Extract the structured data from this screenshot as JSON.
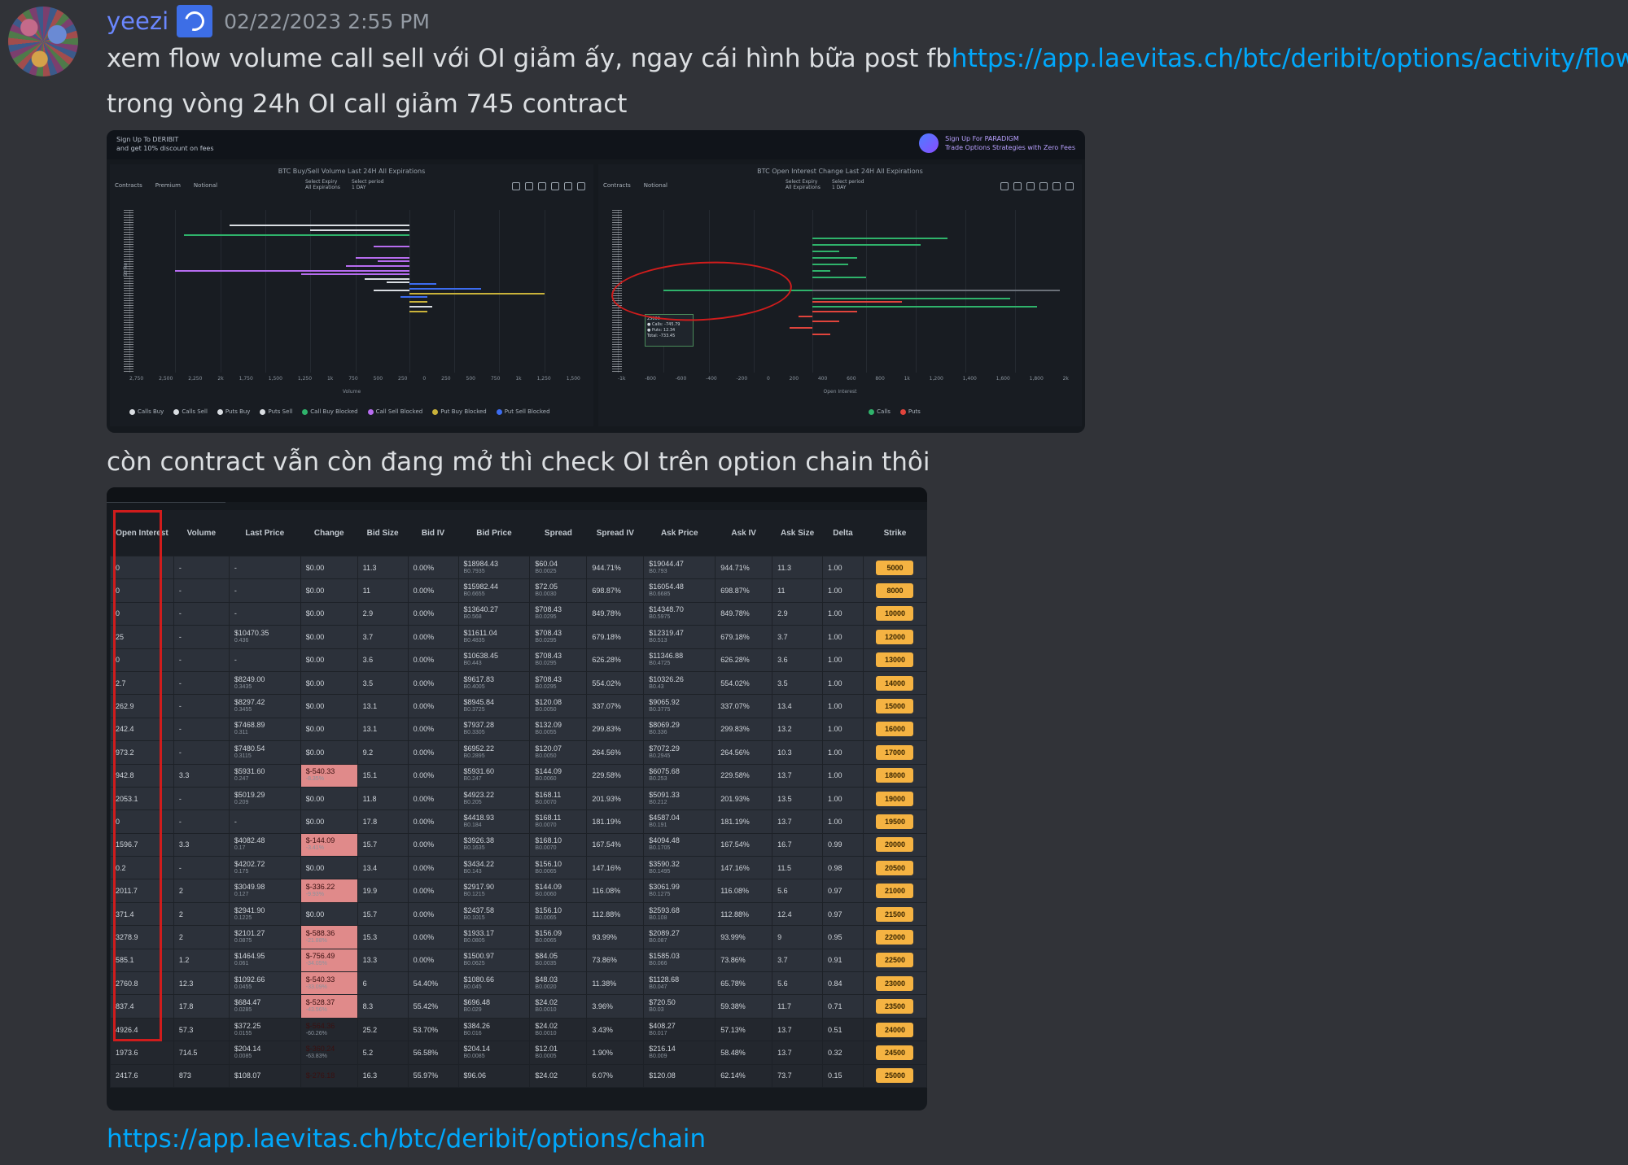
{
  "author": {
    "username": "yeezi",
    "timestamp": "02/22/2023 2:55 PM"
  },
  "message": {
    "line1_text": "xem flow volume call sell với OI giảm ấy, ngay cái hình bữa post fb",
    "line1_link": "https://app.laevitas.ch/btc/deribit/options/activity/flow",
    "line2_text": "trong vòng 24h OI call giảm 745 contract",
    "line3_text": "còn contract vẫn còn đang mở thì check OI trên option chain thôi",
    "final_link": "https://app.laevitas.ch/btc/deribit/options/chain"
  },
  "chart_image": {
    "promo_left_1": "Sign Up To DERIBIT",
    "promo_left_2": "and get 10% discount on fees",
    "promo_right_1": "Sign Up For PARADIGM",
    "promo_right_2": "Trade Options Strategies with Zero Fees",
    "left_panel": {
      "title": "BTC Buy/Sell Volume Last 24H All Expirations",
      "tabs": [
        "Contracts",
        "Premium",
        "Notional"
      ],
      "select1_label": "Select Expiry",
      "select1_value": "All Expirations",
      "select2_label": "Select period",
      "select2_value": "1 DAY",
      "y_label": "Strike",
      "x_label": "Volume",
      "x_ticks": [
        "2,750",
        "2,500",
        "2,250",
        "2k",
        "1,750",
        "1,500",
        "1,250",
        "1k",
        "750",
        "500",
        "250",
        "0",
        "250",
        "500",
        "750",
        "1k",
        "1,250",
        "1,500"
      ],
      "legend": [
        "Calls Buy",
        "Calls Sell",
        "Puts Buy",
        "Puts Sell",
        "Call Buy Blocked",
        "Call Sell Blocked",
        "Put Buy Blocked",
        "Put Sell Blocked"
      ],
      "legend_colors": [
        "#d9dde2",
        "#d9dde2",
        "#d9dde2",
        "#d9dde2",
        "#2fb36b",
        "#b76cf0",
        "#c9b23a",
        "#3c6cf0"
      ]
    },
    "right_panel": {
      "title": "BTC Open Interest Change Last 24H All Expirations",
      "tabs": [
        "Contracts",
        "Notional"
      ],
      "select1_label": "Select Expiry",
      "select1_value": "All Expirations",
      "select2_label": "Select period",
      "select2_value": "1 DAY",
      "x_label": "Open Interest",
      "x_ticks": [
        "-1k",
        "-800",
        "-600",
        "-400",
        "-200",
        "0",
        "200",
        "400",
        "600",
        "800",
        "1k",
        "1,200",
        "1,400",
        "1,600",
        "1,800",
        "2k"
      ],
      "legend": [
        "Calls",
        "Puts"
      ],
      "legend_colors": [
        "#2fb36b",
        "#e0443c"
      ],
      "tooltip_title": "25000",
      "tooltip_calls": "● Calls: -745.79",
      "tooltip_puts": "● Puts: 12.34",
      "tooltip_total": "Total: -733.45"
    }
  },
  "option_chain": {
    "headers": [
      "Open Interest",
      "Volume",
      "Last Price",
      "Change",
      "Bid Size",
      "Bid IV",
      "Bid Price",
      "Spread",
      "Spread IV",
      "Ask Price",
      "Ask IV",
      "Ask Size",
      "Delta",
      "Strike"
    ],
    "rows": [
      {
        "oi": "0",
        "vol": "-",
        "last": "-",
        "last_sub": "",
        "chg": "$0.00",
        "chg_sub": "",
        "neg": false,
        "bsize": "11.3",
        "biv": "0.00%",
        "bid": "$18984.43",
        "bid_sub": "B0.7935",
        "spr": "$60.04",
        "spr_sub": "B0.0025",
        "spriv": "944.71%",
        "ask": "$19044.47",
        "ask_sub": "B0.793",
        "askiv": "944.71%",
        "asize": "11.3",
        "delta": "1.00",
        "strike": "5000"
      },
      {
        "oi": "0",
        "vol": "-",
        "last": "-",
        "last_sub": "",
        "chg": "$0.00",
        "chg_sub": "",
        "neg": false,
        "bsize": "11",
        "biv": "0.00%",
        "bid": "$15982.44",
        "bid_sub": "B0.6655",
        "spr": "$72.05",
        "spr_sub": "B0.0030",
        "spriv": "698.87%",
        "ask": "$16054.48",
        "ask_sub": "B0.6685",
        "askiv": "698.87%",
        "asize": "11",
        "delta": "1.00",
        "strike": "8000"
      },
      {
        "oi": "0",
        "vol": "-",
        "last": "-",
        "last_sub": "",
        "chg": "$0.00",
        "chg_sub": "",
        "neg": false,
        "bsize": "2.9",
        "biv": "0.00%",
        "bid": "$13640.27",
        "bid_sub": "B0.568",
        "spr": "$708.43",
        "spr_sub": "B0.0295",
        "spriv": "849.78%",
        "ask": "$14348.70",
        "ask_sub": "B0.5975",
        "askiv": "849.78%",
        "asize": "2.9",
        "delta": "1.00",
        "strike": "10000"
      },
      {
        "oi": "25",
        "vol": "-",
        "last": "$10470.35",
        "last_sub": "0.436",
        "chg": "$0.00",
        "chg_sub": "",
        "neg": false,
        "bsize": "3.7",
        "biv": "0.00%",
        "bid": "$11611.04",
        "bid_sub": "B0.4835",
        "spr": "$708.43",
        "spr_sub": "B0.0295",
        "spriv": "679.18%",
        "ask": "$12319.47",
        "ask_sub": "B0.513",
        "askiv": "679.18%",
        "asize": "3.7",
        "delta": "1.00",
        "strike": "12000"
      },
      {
        "oi": "0",
        "vol": "-",
        "last": "-",
        "last_sub": "",
        "chg": "$0.00",
        "chg_sub": "",
        "neg": false,
        "bsize": "3.6",
        "biv": "0.00%",
        "bid": "$10638.45",
        "bid_sub": "B0.443",
        "spr": "$708.43",
        "spr_sub": "B0.0295",
        "spriv": "626.28%",
        "ask": "$11346.88",
        "ask_sub": "B0.4725",
        "askiv": "626.28%",
        "asize": "3.6",
        "delta": "1.00",
        "strike": "13000"
      },
      {
        "oi": "2.7",
        "vol": "-",
        "last": "$8249.00",
        "last_sub": "0.3435",
        "chg": "$0.00",
        "chg_sub": "",
        "neg": false,
        "bsize": "3.5",
        "biv": "0.00%",
        "bid": "$9617.83",
        "bid_sub": "B0.4005",
        "spr": "$708.43",
        "spr_sub": "B0.0295",
        "spriv": "554.02%",
        "ask": "$10326.26",
        "ask_sub": "B0.43",
        "askiv": "554.02%",
        "asize": "3.5",
        "delta": "1.00",
        "strike": "14000"
      },
      {
        "oi": "262.9",
        "vol": "-",
        "last": "$8297.42",
        "last_sub": "0.3455",
        "chg": "$0.00",
        "chg_sub": "",
        "neg": false,
        "bsize": "13.1",
        "biv": "0.00%",
        "bid": "$8945.84",
        "bid_sub": "B0.3725",
        "spr": "$120.08",
        "spr_sub": "B0.0050",
        "spriv": "337.07%",
        "ask": "$9065.92",
        "ask_sub": "B0.3775",
        "askiv": "337.07%",
        "asize": "13.4",
        "delta": "1.00",
        "strike": "15000"
      },
      {
        "oi": "242.4",
        "vol": "-",
        "last": "$7468.89",
        "last_sub": "0.311",
        "chg": "$0.00",
        "chg_sub": "",
        "neg": false,
        "bsize": "13.1",
        "biv": "0.00%",
        "bid": "$7937.28",
        "bid_sub": "B0.3305",
        "spr": "$132.09",
        "spr_sub": "B0.0055",
        "spriv": "299.83%",
        "ask": "$8069.29",
        "ask_sub": "B0.336",
        "askiv": "299.83%",
        "asize": "13.2",
        "delta": "1.00",
        "strike": "16000"
      },
      {
        "oi": "973.2",
        "vol": "-",
        "last": "$7480.54",
        "last_sub": "0.3115",
        "chg": "$0.00",
        "chg_sub": "",
        "neg": false,
        "bsize": "9.2",
        "biv": "0.00%",
        "bid": "$6952.22",
        "bid_sub": "B0.2895",
        "spr": "$120.07",
        "spr_sub": "B0.0050",
        "spriv": "264.56%",
        "ask": "$7072.29",
        "ask_sub": "B0.2945",
        "askiv": "264.56%",
        "asize": "10.3",
        "delta": "1.00",
        "strike": "17000"
      },
      {
        "oi": "942.8",
        "vol": "3.3",
        "last": "$5931.60",
        "last_sub": "0.247",
        "chg": "$-540.33",
        "chg_sub": "-8.35%",
        "neg": true,
        "bsize": "15.1",
        "biv": "0.00%",
        "bid": "$5931.60",
        "bid_sub": "B0.247",
        "spr": "$144.09",
        "spr_sub": "B0.0060",
        "spriv": "229.58%",
        "ask": "$6075.68",
        "ask_sub": "B0.253",
        "askiv": "229.58%",
        "asize": "13.7",
        "delta": "1.00",
        "strike": "18000"
      },
      {
        "oi": "2053.1",
        "vol": "-",
        "last": "$5019.29",
        "last_sub": "0.209",
        "chg": "$0.00",
        "chg_sub": "",
        "neg": false,
        "bsize": "11.8",
        "biv": "0.00%",
        "bid": "$4923.22",
        "bid_sub": "B0.205",
        "spr": "$168.11",
        "spr_sub": "B0.0070",
        "spriv": "201.93%",
        "ask": "$5091.33",
        "ask_sub": "B0.212",
        "askiv": "201.93%",
        "asize": "13.5",
        "delta": "1.00",
        "strike": "19000"
      },
      {
        "oi": "0",
        "vol": "-",
        "last": "-",
        "last_sub": "",
        "chg": "$0.00",
        "chg_sub": "",
        "neg": false,
        "bsize": "17.8",
        "biv": "0.00%",
        "bid": "$4418.93",
        "bid_sub": "B0.184",
        "spr": "$168.11",
        "spr_sub": "B0.0070",
        "spriv": "181.19%",
        "ask": "$4587.04",
        "ask_sub": "B0.191",
        "askiv": "181.19%",
        "asize": "13.7",
        "delta": "1.00",
        "strike": "19500"
      },
      {
        "oi": "1596.7",
        "vol": "3.3",
        "last": "$4082.48",
        "last_sub": "0.17",
        "chg": "$-144.09",
        "chg_sub": "-3.41%",
        "neg": true,
        "bsize": "15.7",
        "biv": "0.00%",
        "bid": "$3926.38",
        "bid_sub": "B0.1635",
        "spr": "$168.10",
        "spr_sub": "B0.0070",
        "spriv": "167.54%",
        "ask": "$4094.48",
        "ask_sub": "B0.1705",
        "askiv": "167.54%",
        "asize": "16.7",
        "delta": "0.99",
        "strike": "20000"
      },
      {
        "oi": "0.2",
        "vol": "-",
        "last": "$4202.72",
        "last_sub": "0.175",
        "chg": "$0.00",
        "chg_sub": "",
        "neg": false,
        "bsize": "13.4",
        "biv": "0.00%",
        "bid": "$3434.22",
        "bid_sub": "B0.143",
        "spr": "$156.10",
        "spr_sub": "B0.0065",
        "spriv": "147.16%",
        "ask": "$3590.32",
        "ask_sub": "B0.1495",
        "askiv": "147.16%",
        "asize": "11.5",
        "delta": "0.98",
        "strike": "20500"
      },
      {
        "oi": "2011.7",
        "vol": "2",
        "last": "$3049.98",
        "last_sub": "0.127",
        "chg": "$-336.22",
        "chg_sub": "-9.93%",
        "neg": true,
        "bsize": "19.9",
        "biv": "0.00%",
        "bid": "$2917.90",
        "bid_sub": "B0.1215",
        "spr": "$144.09",
        "spr_sub": "B0.0060",
        "spriv": "116.08%",
        "ask": "$3061.99",
        "ask_sub": "B0.1275",
        "askiv": "116.08%",
        "asize": "5.6",
        "delta": "0.97",
        "strike": "21000"
      },
      {
        "oi": "371.4",
        "vol": "2",
        "last": "$2941.90",
        "last_sub": "0.1225",
        "chg": "$0.00",
        "chg_sub": "",
        "neg": false,
        "bsize": "15.7",
        "biv": "0.00%",
        "bid": "$2437.58",
        "bid_sub": "B0.1015",
        "spr": "$156.10",
        "spr_sub": "B0.0065",
        "spriv": "112.88%",
        "ask": "$2593.68",
        "ask_sub": "B0.108",
        "askiv": "112.88%",
        "asize": "12.4",
        "delta": "0.97",
        "strike": "21500"
      },
      {
        "oi": "3278.9",
        "vol": "2",
        "last": "$2101.27",
        "last_sub": "0.0875",
        "chg": "$-588.36",
        "chg_sub": "-21.88%",
        "neg": true,
        "bsize": "15.3",
        "biv": "0.00%",
        "bid": "$1933.17",
        "bid_sub": "B0.0805",
        "spr": "$156.09",
        "spr_sub": "B0.0065",
        "spriv": "93.99%",
        "ask": "$2089.27",
        "ask_sub": "B0.087",
        "askiv": "93.99%",
        "asize": "9",
        "delta": "0.95",
        "strike": "22000"
      },
      {
        "oi": "585.1",
        "vol": "1.2",
        "last": "$1464.95",
        "last_sub": "0.061",
        "chg": "$-756.49",
        "chg_sub": "-34.05%",
        "neg": true,
        "bsize": "13.3",
        "biv": "0.00%",
        "bid": "$1500.97",
        "bid_sub": "B0.0625",
        "spr": "$84.05",
        "spr_sub": "B0.0035",
        "spriv": "73.86%",
        "ask": "$1585.03",
        "ask_sub": "B0.066",
        "askiv": "73.86%",
        "asize": "3.7",
        "delta": "0.91",
        "strike": "22500"
      },
      {
        "oi": "2760.8",
        "vol": "12.3",
        "last": "$1092.66",
        "last_sub": "0.0455",
        "chg": "$-540.33",
        "chg_sub": "-33.09%",
        "neg": true,
        "bsize": "6",
        "biv": "54.40%",
        "bid": "$1080.66",
        "bid_sub": "B0.045",
        "spr": "$48.03",
        "spr_sub": "B0.0020",
        "spriv": "11.38%",
        "ask": "$1128.68",
        "ask_sub": "B0.047",
        "askiv": "65.78%",
        "asize": "5.6",
        "delta": "0.84",
        "strike": "23000"
      },
      {
        "oi": "837.4",
        "vol": "17.8",
        "last": "$684.47",
        "last_sub": "0.0285",
        "chg": "$-528.37",
        "chg_sub": "-43.56%",
        "neg": true,
        "bsize": "8.3",
        "biv": "55.42%",
        "bid": "$696.48",
        "bid_sub": "B0.029",
        "spr": "$24.02",
        "spr_sub": "B0.0010",
        "spriv": "3.96%",
        "ask": "$720.50",
        "ask_sub": "B0.03",
        "askiv": "59.38%",
        "asize": "11.7",
        "delta": "0.71",
        "strike": "23500"
      },
      {
        "oi": "4926.4",
        "vol": "57.3",
        "last": "$372.25",
        "last_sub": "0.0155",
        "chg": "$-564.36",
        "chg_sub": "-60.26%",
        "neg": true,
        "bsize": "25.2",
        "biv": "53.70%",
        "bid": "$384.26",
        "bid_sub": "B0.016",
        "spr": "$24.02",
        "spr_sub": "B0.0010",
        "spriv": "3.43%",
        "ask": "$408.27",
        "ask_sub": "B0.017",
        "askiv": "57.13%",
        "asize": "13.7",
        "delta": "0.51",
        "strike": "24000",
        "dark": true
      },
      {
        "oi": "1973.6",
        "vol": "714.5",
        "last": "$204.14",
        "last_sub": "0.0085",
        "chg": "$-360.24",
        "chg_sub": "-63.83%",
        "neg": true,
        "bsize": "5.2",
        "biv": "56.58%",
        "bid": "$204.14",
        "bid_sub": "B0.0085",
        "spr": "$12.01",
        "spr_sub": "B0.0005",
        "spriv": "1.90%",
        "ask": "$216.14",
        "ask_sub": "B0.009",
        "askiv": "58.48%",
        "asize": "13.7",
        "delta": "0.32",
        "strike": "24500",
        "dark": true
      },
      {
        "oi": "2417.6",
        "vol": "873",
        "last": "$108.07",
        "last_sub": "",
        "chg": "$-276.18",
        "chg_sub": "",
        "neg": true,
        "bsize": "16.3",
        "biv": "55.97%",
        "bid": "$96.06",
        "bid_sub": "",
        "spr": "$24.02",
        "spr_sub": "",
        "spriv": "6.07%",
        "ask": "$120.08",
        "ask_sub": "",
        "askiv": "62.14%",
        "asize": "73.7",
        "delta": "0.15",
        "strike": "25000",
        "dark": true
      }
    ]
  }
}
